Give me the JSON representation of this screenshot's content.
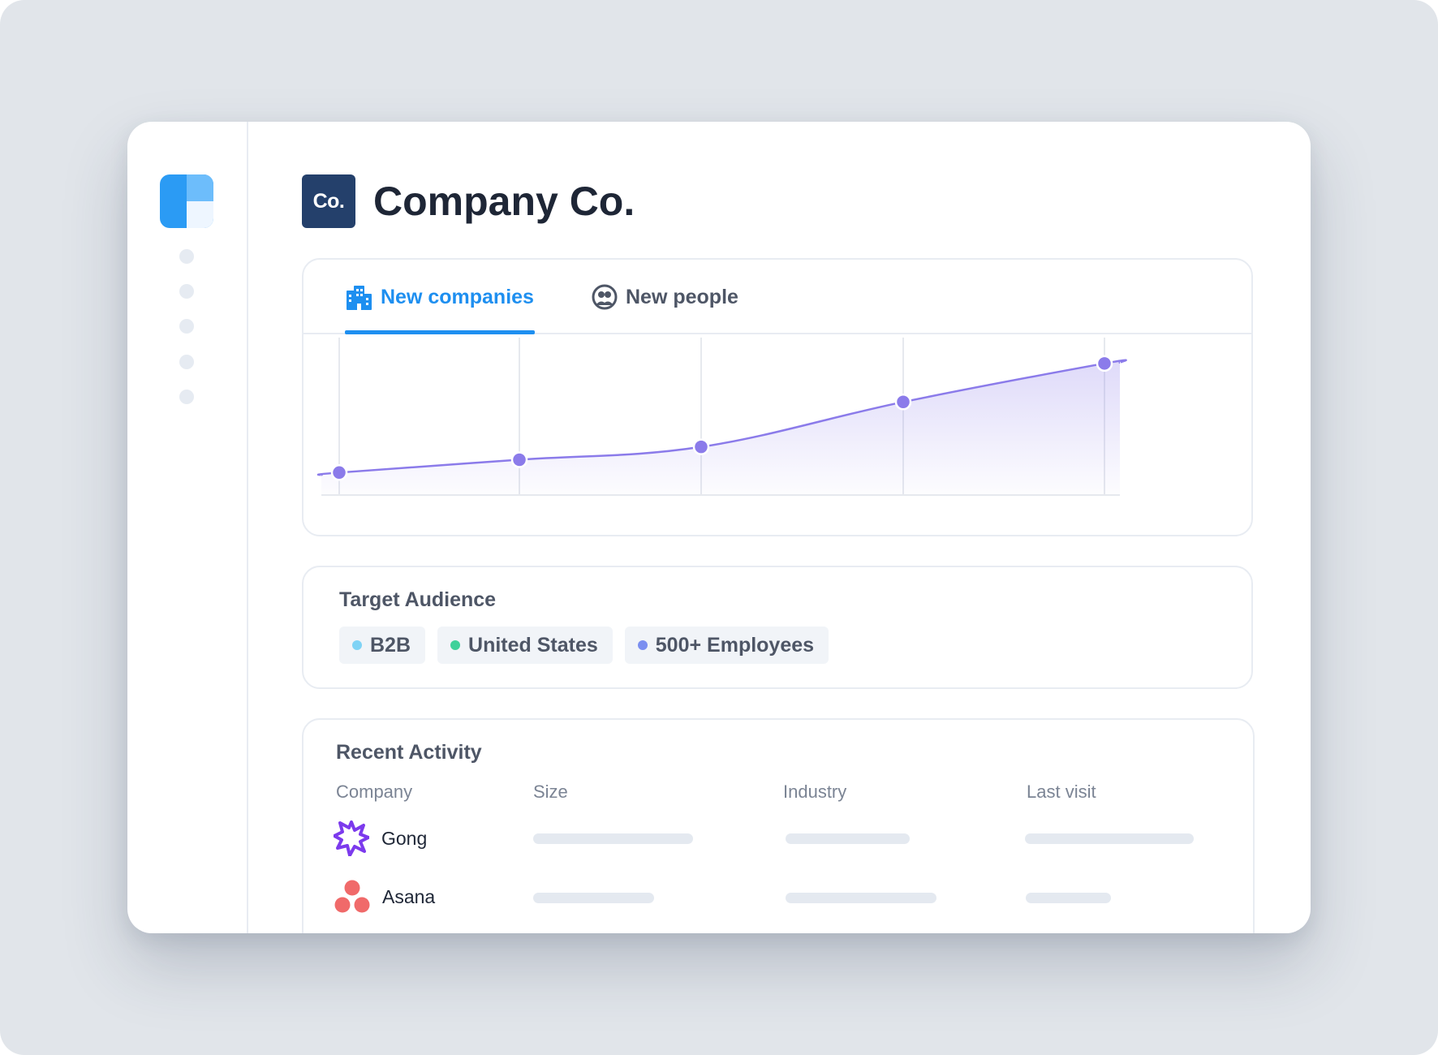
{
  "company": {
    "badge": "Co.",
    "name": "Company Co."
  },
  "tabs": [
    {
      "label": "New companies",
      "icon": "buildings-icon",
      "active": true
    },
    {
      "label": "New people",
      "icon": "people-icon",
      "active": false
    }
  ],
  "chart_data": {
    "type": "area",
    "x": [
      1,
      2,
      3,
      4,
      5
    ],
    "values": [
      7,
      11,
      15,
      29,
      41
    ],
    "ylim": [
      0,
      45
    ],
    "grid": "vertical",
    "color": "#8b7bea"
  },
  "audience": {
    "title": "Target Audience",
    "chips": [
      {
        "label": "B2B",
        "color": "#7fd3f5"
      },
      {
        "label": "United States",
        "color": "#3fd19a"
      },
      {
        "label": "500+ Employees",
        "color": "#7b8ff0"
      }
    ]
  },
  "activity": {
    "title": "Recent Activity",
    "columns": [
      "Company",
      "Size",
      "Industry",
      "Last visit"
    ],
    "rows": [
      {
        "name": "Gong",
        "logo": "gong-logo-icon"
      },
      {
        "name": "Asana",
        "logo": "asana-logo-icon"
      }
    ]
  },
  "colors": {
    "accent": "#1e8ff0",
    "badge": "#24406b",
    "chart": "#8b7bea"
  }
}
